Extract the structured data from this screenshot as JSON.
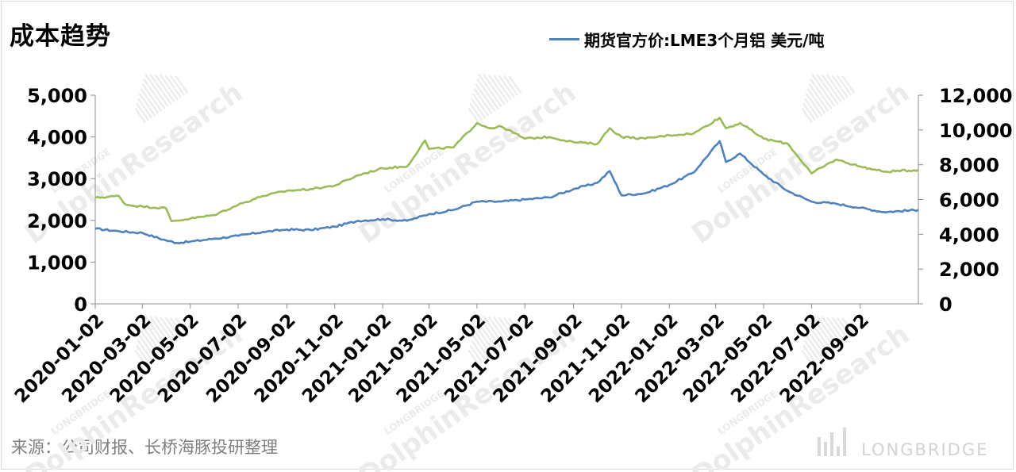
{
  "page": {
    "title": "成本趋势",
    "source": "来源：公司财报、长桥海豚投研整理",
    "watermark": {
      "logo_text": "LONGBRIDGE",
      "diagonal_text": "DolphinResearch",
      "small_text": "LONGBRIDGE"
    }
  },
  "chart_data": {
    "type": "line",
    "title": "",
    "legend": {
      "position": "top-right",
      "entries": [
        "期货官方价:LME3个月铝 美元/吨"
      ]
    },
    "x_ticks": [
      "2020-01-02",
      "2020-03-02",
      "2020-05-02",
      "2020-07-02",
      "2020-09-02",
      "2020-11-02",
      "2021-01-02",
      "2021-03-02",
      "2021-05-02",
      "2021-07-02",
      "2021-09-02",
      "2021-11-02",
      "2022-01-02",
      "2022-03-02",
      "2022-05-02",
      "2022-07-02",
      "2022-09-02"
    ],
    "x_range": [
      "2020-01-02",
      "2022-11-15"
    ],
    "y_left": {
      "range": [
        0,
        5000
      ],
      "ticks": [
        "0",
        "1,000",
        "2,000",
        "3,000",
        "4,000",
        "5,000"
      ]
    },
    "y_right": {
      "range": [
        0,
        12000
      ],
      "ticks": [
        "0",
        "2,000",
        "4,000",
        "6,000",
        "8,000",
        "10,000",
        "12,000"
      ]
    },
    "grid": false,
    "series": [
      {
        "name": "期货官方价:LME3个月铝 美元/吨",
        "axis": "left",
        "color": "#4f81bd",
        "points": [
          [
            "2020-01-02",
            1800
          ],
          [
            "2020-02-01",
            1740
          ],
          [
            "2020-03-02",
            1700
          ],
          [
            "2020-04-01",
            1520
          ],
          [
            "2020-04-15",
            1460
          ],
          [
            "2020-05-02",
            1490
          ],
          [
            "2020-06-01",
            1560
          ],
          [
            "2020-07-02",
            1630
          ],
          [
            "2020-08-02",
            1720
          ],
          [
            "2020-09-02",
            1780
          ],
          [
            "2020-10-02",
            1770
          ],
          [
            "2020-11-02",
            1850
          ],
          [
            "2020-12-02",
            1990
          ],
          [
            "2021-01-02",
            2030
          ],
          [
            "2021-02-02",
            1990
          ],
          [
            "2021-03-02",
            2150
          ],
          [
            "2021-04-02",
            2250
          ],
          [
            "2021-05-02",
            2450
          ],
          [
            "2021-06-02",
            2450
          ],
          [
            "2021-07-02",
            2500
          ],
          [
            "2021-08-02",
            2550
          ],
          [
            "2021-09-02",
            2750
          ],
          [
            "2021-10-02",
            2900
          ],
          [
            "2021-10-18",
            3180
          ],
          [
            "2021-11-02",
            2600
          ],
          [
            "2021-12-02",
            2650
          ],
          [
            "2022-01-02",
            2850
          ],
          [
            "2022-02-02",
            3150
          ],
          [
            "2022-03-07",
            3900
          ],
          [
            "2022-03-15",
            3400
          ],
          [
            "2022-04-02",
            3600
          ],
          [
            "2022-05-02",
            3100
          ],
          [
            "2022-06-02",
            2700
          ],
          [
            "2022-07-02",
            2450
          ],
          [
            "2022-08-02",
            2400
          ],
          [
            "2022-09-02",
            2300
          ],
          [
            "2022-10-02",
            2200
          ],
          [
            "2022-11-15",
            2250
          ]
        ]
      },
      {
        "name": "",
        "axis": "right",
        "color": "#9bbb59",
        "points": [
          [
            "2020-01-02",
            6100
          ],
          [
            "2020-02-01",
            6200
          ],
          [
            "2020-02-10",
            5700
          ],
          [
            "2020-03-02",
            5600
          ],
          [
            "2020-04-01",
            5500
          ],
          [
            "2020-04-08",
            4750
          ],
          [
            "2020-05-02",
            4900
          ],
          [
            "2020-06-01",
            5100
          ],
          [
            "2020-07-02",
            5700
          ],
          [
            "2020-08-02",
            6200
          ],
          [
            "2020-09-02",
            6500
          ],
          [
            "2020-10-02",
            6600
          ],
          [
            "2020-11-02",
            6800
          ],
          [
            "2020-12-02",
            7400
          ],
          [
            "2021-01-02",
            7800
          ],
          [
            "2021-02-02",
            7900
          ],
          [
            "2021-02-25",
            9400
          ],
          [
            "2021-03-02",
            8900
          ],
          [
            "2021-04-02",
            9000
          ],
          [
            "2021-05-02",
            10400
          ],
          [
            "2021-05-18",
            10100
          ],
          [
            "2021-06-02",
            10200
          ],
          [
            "2021-07-02",
            9500
          ],
          [
            "2021-08-02",
            9600
          ],
          [
            "2021-09-02",
            9300
          ],
          [
            "2021-10-02",
            9200
          ],
          [
            "2021-10-18",
            10100
          ],
          [
            "2021-11-02",
            9600
          ],
          [
            "2021-12-02",
            9500
          ],
          [
            "2022-01-02",
            9700
          ],
          [
            "2022-02-02",
            9800
          ],
          [
            "2022-03-07",
            10700
          ],
          [
            "2022-03-15",
            10100
          ],
          [
            "2022-04-02",
            10400
          ],
          [
            "2022-05-02",
            9500
          ],
          [
            "2022-06-02",
            9200
          ],
          [
            "2022-07-02",
            7500
          ],
          [
            "2022-08-02",
            8300
          ],
          [
            "2022-09-02",
            7900
          ],
          [
            "2022-10-02",
            7600
          ],
          [
            "2022-11-15",
            7700
          ]
        ]
      }
    ]
  }
}
